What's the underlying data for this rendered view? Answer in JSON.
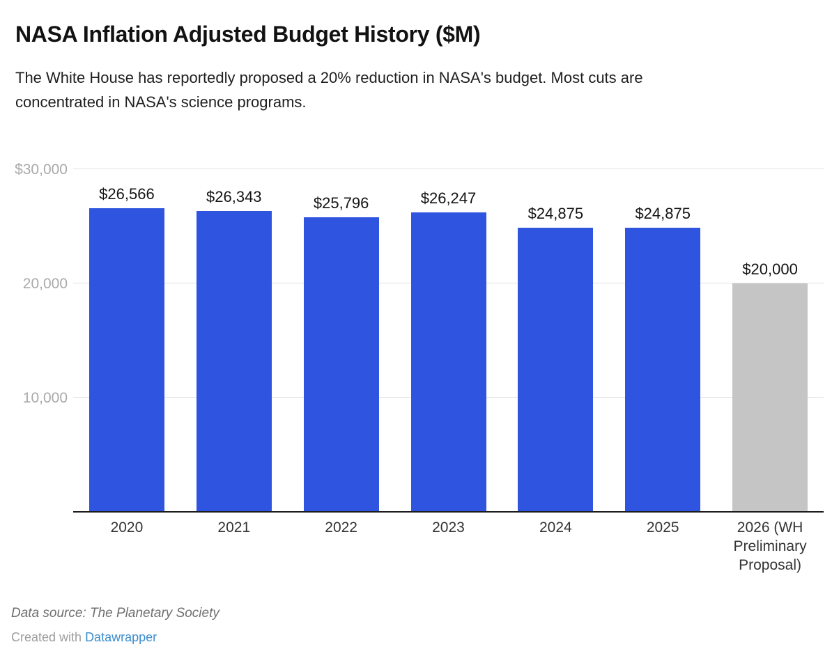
{
  "colors": {
    "bar_blue": "#2f55e0",
    "bar_gray": "#c5c5c5",
    "gridline": "#e2e2e2",
    "axis_line": "#1c1c1c",
    "link_blue": "#3a8dcd"
  },
  "chart_data": {
    "type": "bar",
    "title": "NASA Inflation Adjusted Budget History ($M)",
    "subtitle": "The White House has reportedly proposed a 20% reduction in NASA's budget. Most cuts are concentrated in NASA's science programs.",
    "categories": [
      "2020",
      "2021",
      "2022",
      "2023",
      "2024",
      "2025",
      "2026 (WH Preliminary Proposal)"
    ],
    "values": [
      26566,
      26343,
      25796,
      26247,
      24875,
      24875,
      20000
    ],
    "value_labels": [
      "$26,566",
      "$26,343",
      "$25,796",
      "$26,247",
      "$24,875",
      "$24,875",
      "$20,000"
    ],
    "bar_colors": [
      "#2f55e0",
      "#2f55e0",
      "#2f55e0",
      "#2f55e0",
      "#2f55e0",
      "#2f55e0",
      "#c5c5c5"
    ],
    "yticks": [
      {
        "value": 30000,
        "label": "$30,000"
      },
      {
        "value": 20000,
        "label": "20,000"
      },
      {
        "value": 10000,
        "label": "10,000"
      }
    ],
    "ylim": [
      0,
      30000
    ],
    "grid": "horizontal",
    "legend": "none",
    "xlabel": "",
    "ylabel": ""
  },
  "footer": {
    "source": "Data source: The Planetary Society",
    "credit_prefix": "Created with ",
    "credit_link_label": "Datawrapper"
  }
}
